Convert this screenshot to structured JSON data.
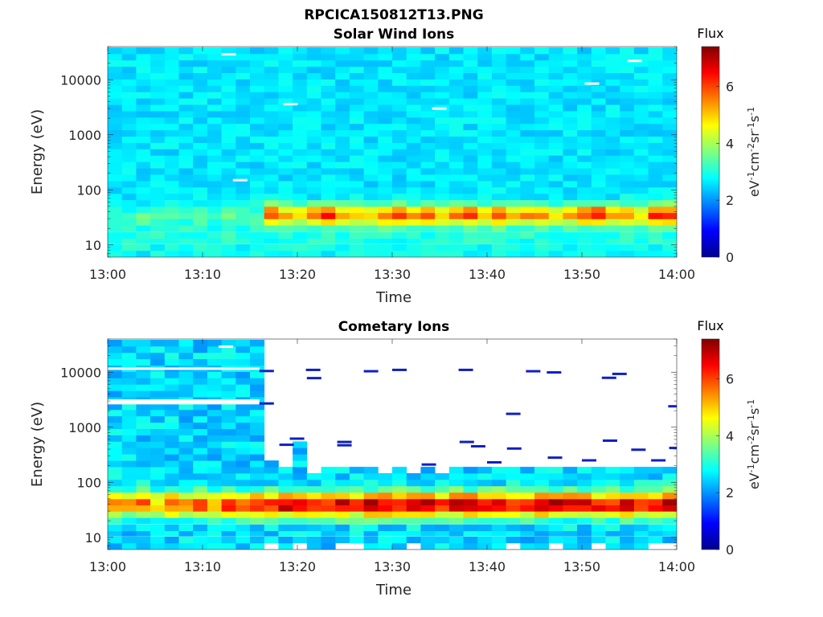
{
  "figure": {
    "title": "RPCICA150812T13.PNG"
  },
  "chart_data": [
    {
      "type": "heatmap",
      "title": "Solar Wind Ions",
      "xlabel": "Time",
      "ylabel": "Energy (eV)",
      "y_scale": "log",
      "xlim": [
        "13:00",
        "14:00"
      ],
      "ylim": [
        6,
        40000
      ],
      "x_ticks": [
        "13:00",
        "13:10",
        "13:20",
        "13:30",
        "13:40",
        "13:50",
        "14:00"
      ],
      "y_ticks": [
        "10",
        "100",
        "1000",
        "10000"
      ],
      "grid": false,
      "colorbar": {
        "title": "Flux",
        "label": "eV-1cm-2sr-1s-1",
        "range": [
          0,
          7.4
        ],
        "ticks": [
          "0",
          "2",
          "4",
          "6"
        ],
        "colormap": "jet"
      },
      "time_bins_minutes": [
        0,
        1.5,
        3,
        4.5,
        6,
        7.5,
        9,
        10.5,
        12,
        13.5,
        15,
        16.5,
        18,
        19.5,
        21,
        22.5,
        24,
        25.5,
        27,
        28.5,
        30,
        31.5,
        33,
        34.5,
        36,
        37.5,
        39,
        40.5,
        42,
        43.5,
        45,
        46.5,
        48,
        49.5,
        51,
        52.5,
        54,
        55.5,
        57,
        58.5
      ],
      "energy_bin_eV": [
        7,
        9,
        12,
        15,
        20,
        26,
        34,
        44,
        57,
        75,
        98,
        128,
        167,
        218,
        284,
        371,
        484,
        631,
        823,
        1074,
        1400,
        1826,
        2381,
        3105,
        4049,
        5280,
        6886,
        8980,
        11710,
        15270,
        19910,
        25960,
        33860
      ],
      "peak_flux_by_time_bin": [
        3.2,
        3.0,
        3.3,
        3.1,
        3.4,
        3.0,
        3.6,
        3.2,
        3.4,
        3.1,
        3.3,
        5.9,
        5.2,
        5.0,
        5.6,
        6.4,
        5.3,
        5.1,
        4.9,
        5.5,
        5.9,
        5.3,
        5.6,
        5.0,
        5.4,
        5.9,
        4.8,
        6.1,
        4.9,
        5.3,
        5.6,
        4.7,
        5.1,
        5.9,
        6.3,
        5.0,
        5.5,
        4.8,
        6.0,
        6.2
      ],
      "gaps_minutes_energy_eV": [
        [
          12.0,
          29000
        ],
        [
          13.2,
          150
        ],
        [
          18.5,
          3600
        ],
        [
          34.2,
          3000
        ],
        [
          50.3,
          8500
        ],
        [
          54.8,
          22000
        ]
      ]
    },
    {
      "type": "heatmap",
      "title": "Cometary Ions",
      "xlabel": "Time",
      "ylabel": "Energy (eV)",
      "y_scale": "log",
      "xlim": [
        "13:00",
        "14:00"
      ],
      "ylim": [
        6,
        40000
      ],
      "x_ticks": [
        "13:00",
        "13:10",
        "13:20",
        "13:30",
        "13:40",
        "13:50",
        "14:00"
      ],
      "y_ticks": [
        "10",
        "100",
        "1000",
        "10000"
      ],
      "grid": false,
      "colorbar": {
        "title": "Flux",
        "label": "eV-1cm-2sr-1s-1",
        "range": [
          0,
          7.4
        ],
        "ticks": [
          "0",
          "2",
          "4",
          "6"
        ],
        "colormap": "jet"
      },
      "time_bins_minutes": [
        0,
        1.5,
        3,
        4.5,
        6,
        7.5,
        9,
        10.5,
        12,
        13.5,
        15,
        16.5,
        18,
        19.5,
        21,
        22.5,
        24,
        25.5,
        27,
        28.5,
        30,
        31.5,
        33,
        34.5,
        36,
        37.5,
        39,
        40.5,
        42,
        43.5,
        45,
        46.5,
        48,
        49.5,
        51,
        52.5,
        54,
        55.5,
        57,
        58.5
      ],
      "energy_bin_eV": [
        7,
        9,
        12,
        15,
        20,
        26,
        34,
        44,
        57,
        75,
        98,
        128,
        167,
        218,
        284,
        371,
        484,
        631,
        823,
        1074,
        1400,
        1826,
        2381,
        3105,
        4049,
        5280,
        6886,
        8980,
        11710,
        15270,
        19910,
        25960,
        33860
      ],
      "peak_flux_by_time_bin": [
        5.3,
        5.4,
        5.8,
        5.0,
        6.1,
        5.5,
        6.0,
        5.2,
        6.4,
        5.6,
        6.6,
        6.5,
        7.0,
        6.8,
        6.7,
        6.2,
        6.9,
        6.5,
        7.1,
        6.7,
        6.6,
        6.8,
        6.9,
        6.4,
        6.8,
        7.0,
        6.6,
        6.7,
        6.5,
        6.3,
        6.9,
        7.1,
        6.6,
        6.8,
        6.5,
        6.4,
        6.7,
        6.6,
        6.8,
        7.0
      ],
      "background_floor_flux_until_minute": 16,
      "cutoff_energy_eV_by_time_bin": [
        33860,
        33860,
        33860,
        33860,
        33860,
        33860,
        33860,
        33860,
        33860,
        33860,
        33860,
        218,
        167,
        630,
        128,
        167,
        167,
        167,
        167,
        128,
        167,
        128,
        167,
        128,
        167,
        167,
        167,
        167,
        167,
        167,
        167,
        167,
        167,
        167,
        167,
        167,
        167,
        167,
        167,
        167
      ],
      "sparse_lines_minutes_energy_eV": [
        [
          16.0,
          10500
        ],
        [
          16.0,
          2700
        ],
        [
          18.1,
          480
        ],
        [
          19.2,
          620
        ],
        [
          20.9,
          11000
        ],
        [
          21.0,
          7800
        ],
        [
          24.2,
          540
        ],
        [
          24.2,
          470
        ],
        [
          27.0,
          10400
        ],
        [
          30.0,
          11000
        ],
        [
          33.1,
          210
        ],
        [
          37.0,
          11000
        ],
        [
          37.1,
          540
        ],
        [
          38.3,
          450
        ],
        [
          40.0,
          230
        ],
        [
          42.0,
          1750
        ],
        [
          42.1,
          410
        ],
        [
          44.1,
          10400
        ],
        [
          46.3,
          9900
        ],
        [
          46.4,
          280
        ],
        [
          50.0,
          250
        ],
        [
          52.1,
          7900
        ],
        [
          52.2,
          570
        ],
        [
          53.2,
          9300
        ],
        [
          55.2,
          390
        ],
        [
          57.3,
          250
        ],
        [
          59.1,
          2400
        ],
        [
          59.2,
          420
        ]
      ],
      "gaps_minutes_energy_eV": [
        [
          11.7,
          29000
        ]
      ],
      "gap_band_energy_eV": [
        [
          11300,
          12200
        ],
        [
          2600,
          3200
        ]
      ]
    }
  ]
}
